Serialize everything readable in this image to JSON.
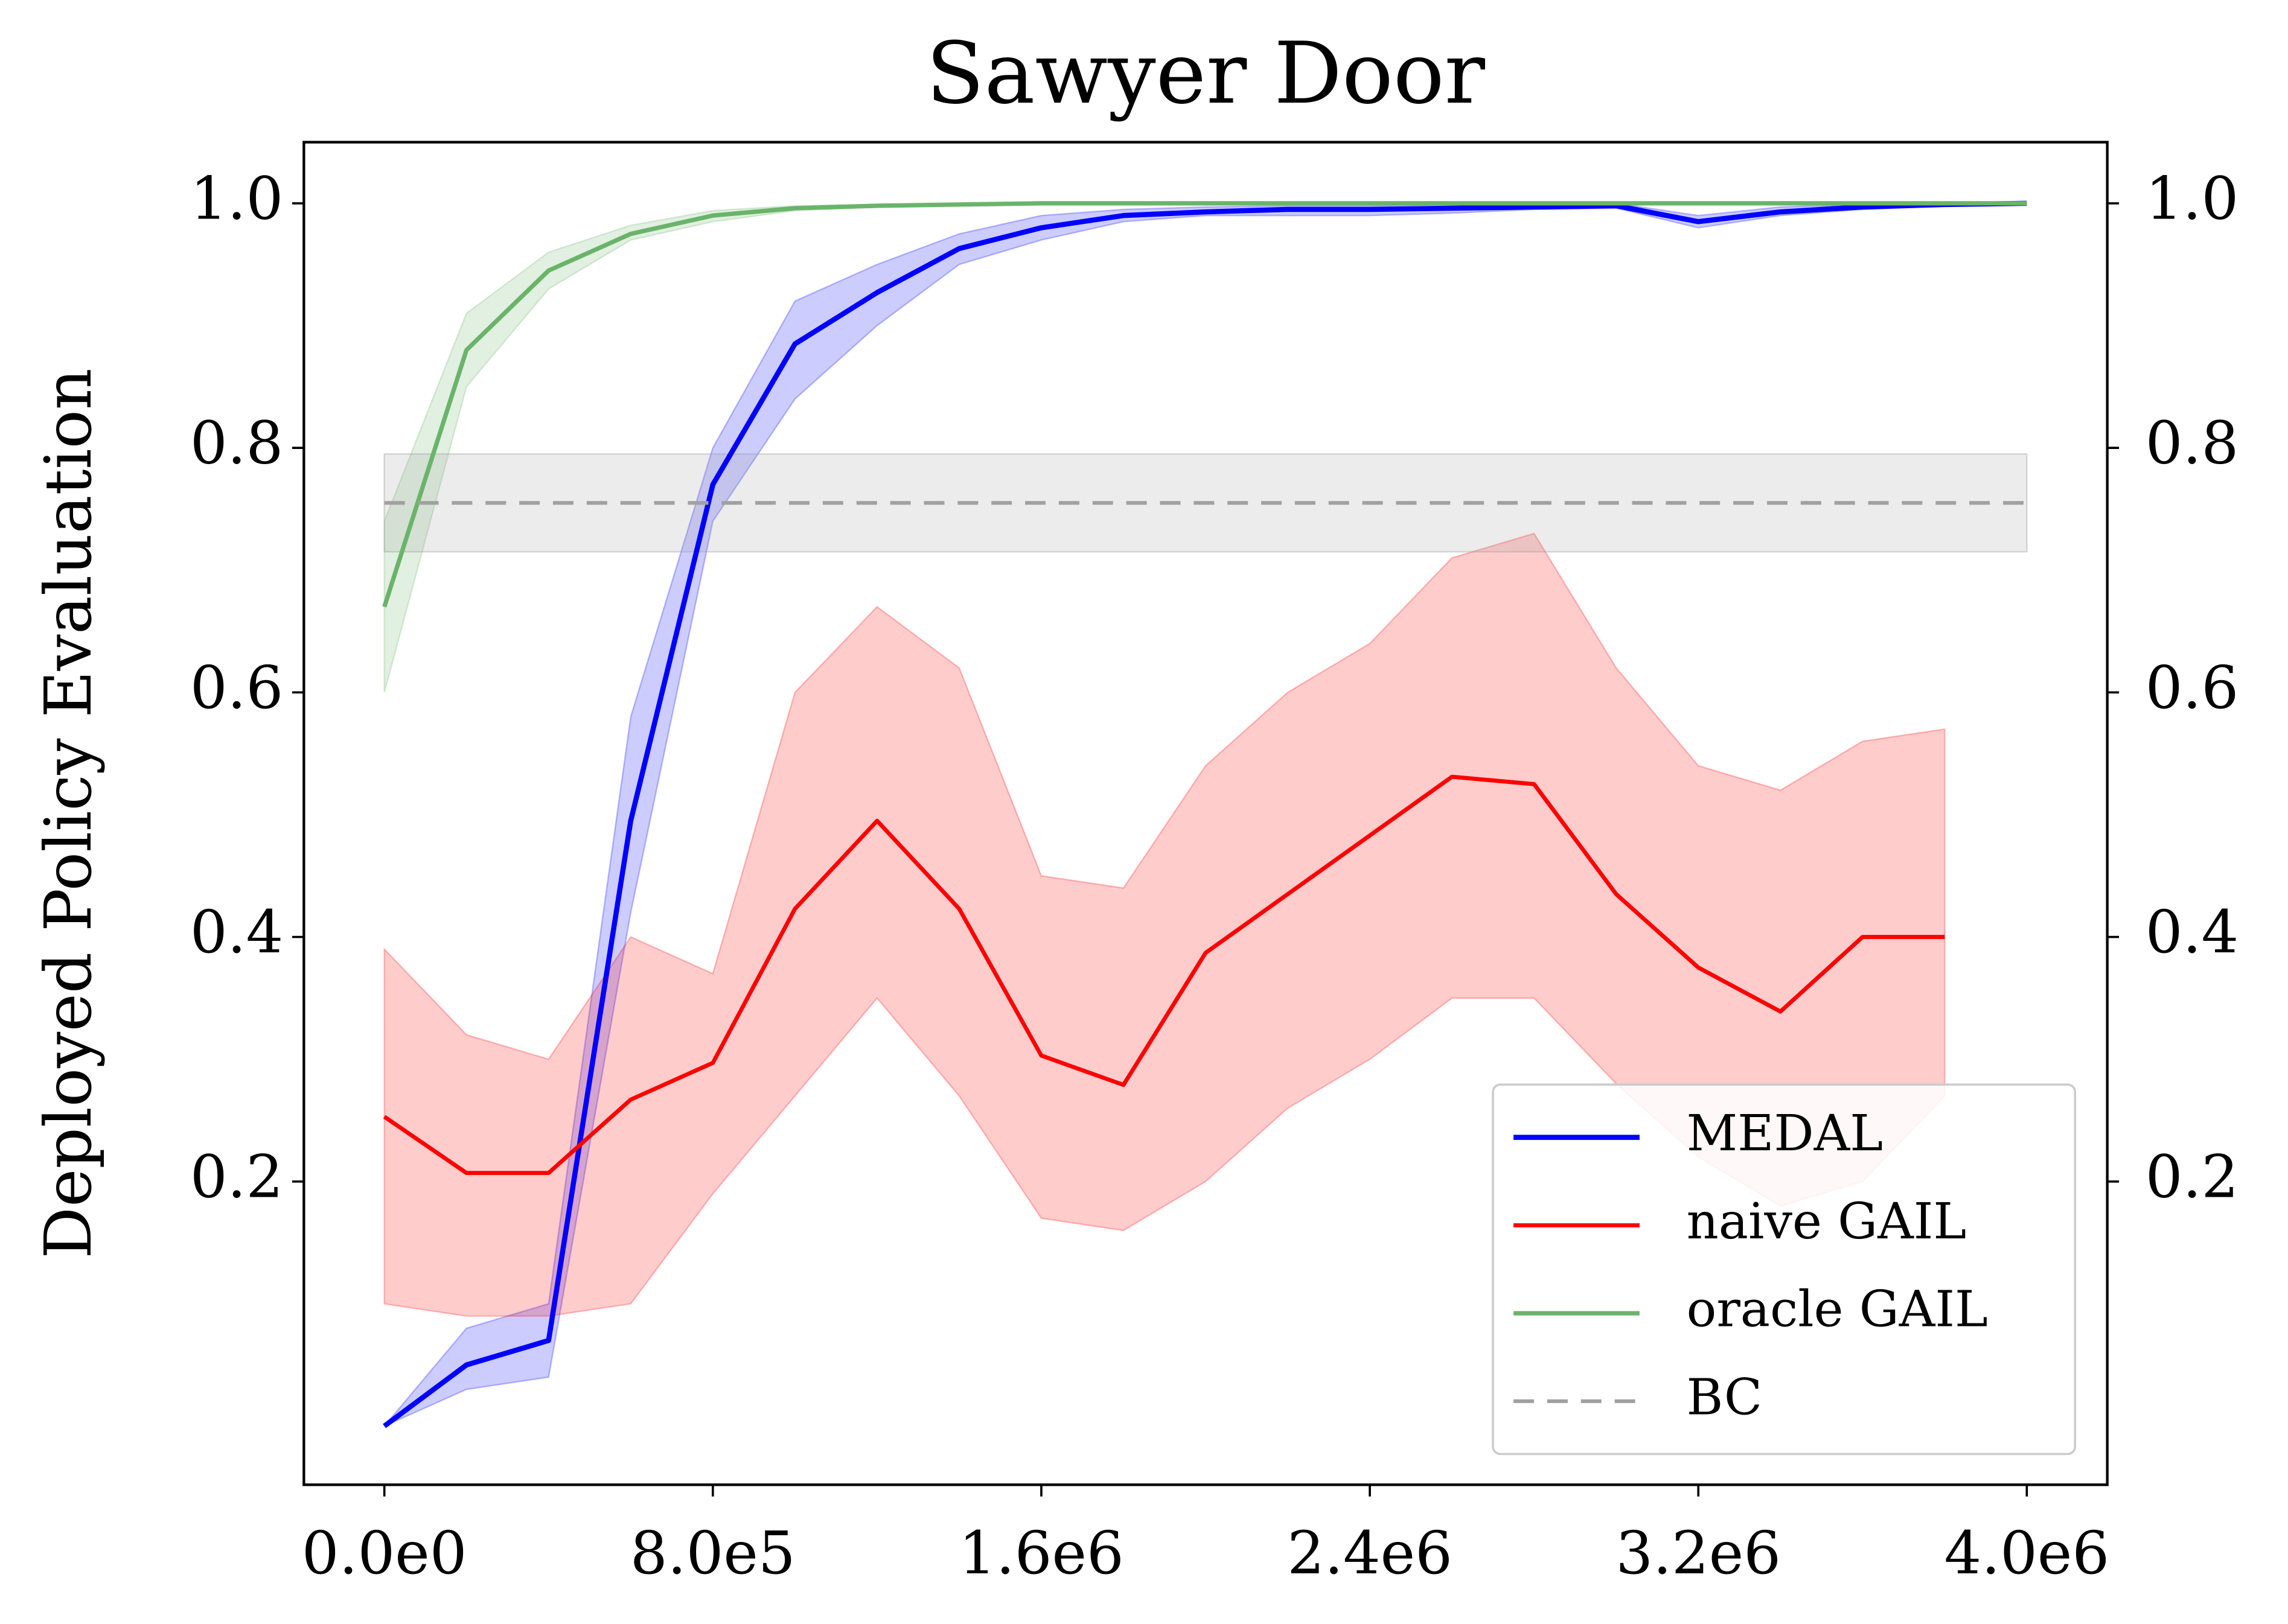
{
  "chart_data": {
    "type": "line",
    "title": "Sawyer Door",
    "y_label": "Deployed Policy Evaluation",
    "x": [
      0,
      200000,
      400000,
      600000,
      800000,
      1000000,
      1200000,
      1400000,
      1600000,
      1800000,
      2000000,
      2200000,
      2400000,
      2600000,
      2800000,
      3000000,
      3200000,
      3400000,
      3600000,
      3800000,
      4000000
    ],
    "xlim": [
      -196000,
      4196000
    ],
    "xticks": [
      {
        "value": 0,
        "label": "0.0e0"
      },
      {
        "value": 800000,
        "label": "8.0e5"
      },
      {
        "value": 1600000,
        "label": "1.6e6"
      },
      {
        "value": 2400000,
        "label": "2.4e6"
      },
      {
        "value": 3200000,
        "label": "3.2e6"
      },
      {
        "value": 4000000,
        "label": "4.0e6"
      }
    ],
    "ylim": [
      -0.048,
      1.05
    ],
    "yticks": [
      0.2,
      0.4,
      0.6,
      0.8,
      {
        "value": 1,
        "label": "1.0"
      }
    ],
    "right_axis_ticks": true,
    "grid": false,
    "legend": "lower right",
    "series": [
      {
        "name": "MEDAL",
        "color": "#0000ff",
        "width": 3.5,
        "values": [
          0.0,
          0.05,
          0.07,
          0.495,
          0.77,
          0.885,
          0.927,
          0.963,
          0.98,
          0.99,
          0.993,
          0.995,
          0.995,
          0.996,
          0.997,
          0.998,
          0.985,
          0.993,
          0.997,
          0.999,
          1.0
        ],
        "lower": [
          0.0,
          0.03,
          0.04,
          0.42,
          0.74,
          0.84,
          0.9,
          0.95,
          0.97,
          0.985,
          0.99,
          0.99,
          0.99,
          0.992,
          0.995,
          0.996,
          0.98,
          0.99,
          0.995,
          0.998,
          1.0
        ],
        "upper": [
          0.0,
          0.08,
          0.1,
          0.58,
          0.8,
          0.92,
          0.95,
          0.975,
          0.99,
          0.995,
          0.997,
          0.998,
          0.998,
          0.999,
          0.999,
          1.0,
          0.99,
          0.997,
          0.999,
          1.0,
          1.0
        ]
      },
      {
        "name": "naive GAIL",
        "color": "#ff0000",
        "width": 2.8,
        "values": [
          0.253,
          0.207,
          0.207,
          0.267,
          0.297,
          0.423,
          0.495,
          0.423,
          0.303,
          0.279,
          0.387,
          0.435,
          0.483,
          0.531,
          0.525,
          0.435,
          0.375,
          0.339,
          0.4,
          0.4,
          null
        ],
        "lower": [
          0.1,
          0.09,
          0.09,
          0.1,
          0.19,
          0.27,
          0.35,
          0.27,
          0.17,
          0.16,
          0.2,
          0.26,
          0.3,
          0.35,
          0.35,
          0.28,
          0.22,
          0.18,
          0.2,
          0.27,
          null
        ],
        "upper": [
          0.39,
          0.32,
          0.3,
          0.4,
          0.37,
          0.6,
          0.67,
          0.62,
          0.45,
          0.44,
          0.54,
          0.6,
          0.64,
          0.71,
          0.73,
          0.62,
          0.54,
          0.52,
          0.56,
          0.57,
          null
        ]
      },
      {
        "name": "oracle GAIL",
        "color": "#6ab46a",
        "width": 3,
        "values": [
          0.67,
          0.88,
          0.945,
          0.975,
          0.99,
          0.996,
          0.998,
          0.999,
          1.0,
          1.0,
          1.0,
          1.0,
          1.0,
          1.0,
          1.0,
          1.0,
          1.0,
          1.0,
          1.0,
          1.0,
          1.0
        ],
        "lower": [
          0.6,
          0.85,
          0.93,
          0.97,
          0.985,
          0.994,
          0.997,
          0.999,
          1.0,
          1.0,
          1.0,
          1.0,
          1.0,
          1.0,
          1.0,
          1.0,
          1.0,
          1.0,
          1.0,
          1.0,
          1.0
        ],
        "upper": [
          0.74,
          0.91,
          0.96,
          0.982,
          0.994,
          0.998,
          0.999,
          1.0,
          1.0,
          1.0,
          1.0,
          1.0,
          1.0,
          1.0,
          1.0,
          1.0,
          1.0,
          1.0,
          1.0,
          1.0,
          1.0
        ]
      },
      {
        "name": "BC",
        "color": "#a0a0a0",
        "width": 2.5,
        "dashed": true,
        "value": 0.755,
        "lower": 0.715,
        "upper": 0.795
      }
    ]
  }
}
